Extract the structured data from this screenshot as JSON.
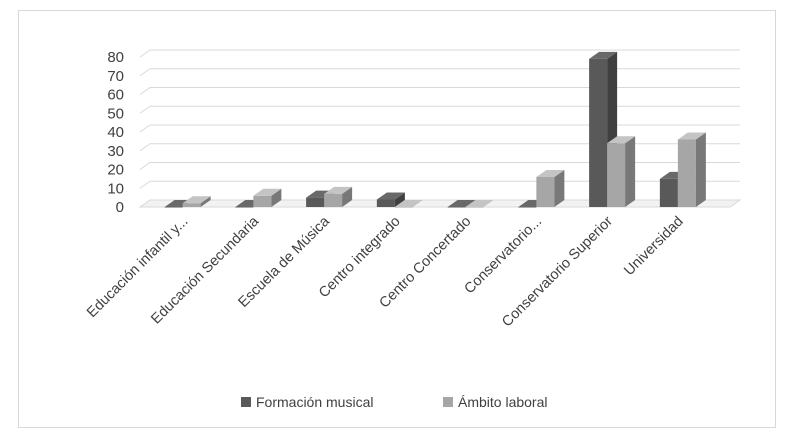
{
  "chart_data": {
    "type": "bar",
    "style": "3d-clustered-column",
    "categories": [
      "Educación infantil y...",
      "Educación Secundaria",
      "Escuela de Música",
      "Centro integrado",
      "Centro Concertado",
      "Conservatorio...",
      "Conservatorio Superior",
      "Universidad"
    ],
    "series": [
      {
        "name": "Formación musical",
        "values": [
          0,
          0,
          5,
          4,
          0,
          0,
          79,
          15
        ],
        "color": "#595959"
      },
      {
        "name": "Ámbito laboral",
        "values": [
          2,
          6,
          7,
          0,
          0,
          16,
          34,
          36
        ],
        "color": "#a6a6a6"
      }
    ],
    "y_ticks": [
      "0",
      "10",
      "20",
      "30",
      "40",
      "50",
      "60",
      "70",
      "80"
    ],
    "ylim": [
      0,
      80
    ],
    "grid": true,
    "legend_position": "bottom"
  }
}
